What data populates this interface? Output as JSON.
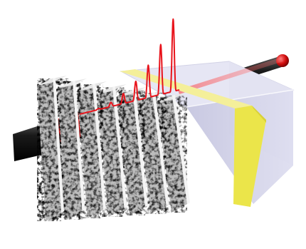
{
  "scene": {
    "colors": {
      "background": "#ffffff",
      "rod": "#1a1a1a",
      "rod_highlight": "#5a5a5a",
      "rod_tip": "#e01010",
      "laser_segment": "#d01010",
      "pulse": "#e8141c",
      "beam": "#ff6060",
      "slab_light": "#f2f2f2",
      "slab_mid": "#a8a8a8",
      "slab_dark": "#3a3a3a",
      "block_top": "#e4e4f2",
      "block_front": "#cdcde6",
      "block_side": "#d8d8ee",
      "yellow_layer": "#ece64a",
      "yellow_top": "#f4ef9a"
    },
    "slab_count": 7,
    "pulse_peak_count": 8
  }
}
